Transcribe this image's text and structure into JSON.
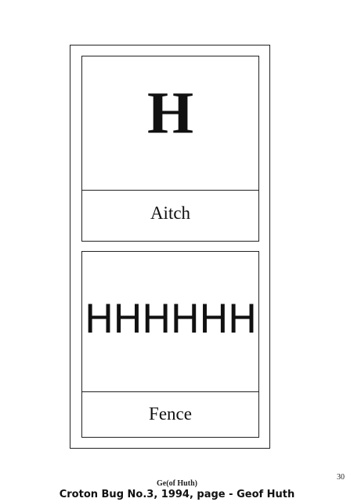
{
  "top_card": {
    "glyph": "H",
    "caption": "Aitch"
  },
  "bottom_card": {
    "glyphs": "HHHHHH",
    "caption": "Fence"
  },
  "footer": {
    "page_number": "30",
    "author": "Ge(of Huth)",
    "source": "Croton Bug No.3, 1994, page - Geof Huth"
  }
}
